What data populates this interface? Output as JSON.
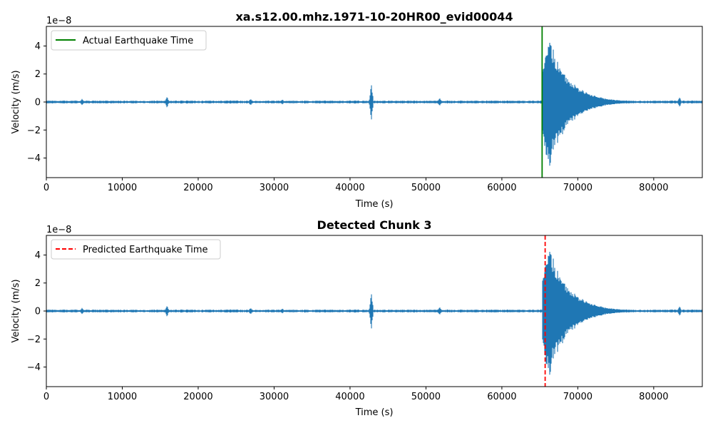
{
  "chart_data": [
    {
      "type": "line",
      "title": "xa.s12.00.mhz.1971-10-20HR00_evid00044",
      "xlabel": "Time (s)",
      "ylabel": "Velocity (m/s)",
      "y_scale_label": "1e−8",
      "xlim": [
        0,
        86400
      ],
      "ylim": [
        -5.4,
        5.4
      ],
      "y_unit_multiplier": 1e-08,
      "xticks": [
        0,
        10000,
        20000,
        30000,
        40000,
        50000,
        60000,
        70000,
        80000
      ],
      "xtick_labels": [
        "0",
        "10000",
        "20000",
        "30000",
        "40000",
        "50000",
        "60000",
        "70000",
        "80000"
      ],
      "yticks": [
        -4,
        -2,
        0,
        2,
        4
      ],
      "ytick_labels": [
        "−4",
        "−2",
        "0",
        "2",
        "4"
      ],
      "grid": false,
      "legend_position": "top-left",
      "series": [
        {
          "color": "#1f77b4",
          "noise_amplitude": 0.08,
          "spikes": [
            [
              4700,
              0.25
            ],
            [
              15900,
              0.45
            ],
            [
              26900,
              0.3
            ],
            [
              31100,
              0.2
            ],
            [
              42800,
              1.55
            ],
            [
              51800,
              0.35
            ],
            [
              83400,
              0.4
            ]
          ],
          "event": {
            "onset": 65300,
            "peak": 5.0,
            "rise": 800,
            "decay": 2600,
            "extent": 15000
          }
        }
      ],
      "vline": {
        "x": 65300,
        "label": "Actual Earthquake Time",
        "color": "#008000",
        "style": "solid"
      }
    },
    {
      "type": "line",
      "title": "Detected Chunk 3",
      "xlabel": "Time (s)",
      "ylabel": "Velocity (m/s)",
      "y_scale_label": "1e−8",
      "xlim": [
        0,
        86400
      ],
      "ylim": [
        -5.4,
        5.4
      ],
      "y_unit_multiplier": 1e-08,
      "xticks": [
        0,
        10000,
        20000,
        30000,
        40000,
        50000,
        60000,
        70000,
        80000
      ],
      "xtick_labels": [
        "0",
        "10000",
        "20000",
        "30000",
        "40000",
        "50000",
        "60000",
        "70000",
        "80000"
      ],
      "yticks": [
        -4,
        -2,
        0,
        2,
        4
      ],
      "ytick_labels": [
        "−4",
        "−2",
        "0",
        "2",
        "4"
      ],
      "grid": false,
      "legend_position": "top-left",
      "series": [
        {
          "color": "#1f77b4",
          "noise_amplitude": 0.08,
          "spikes": [
            [
              4700,
              0.25
            ],
            [
              15900,
              0.45
            ],
            [
              26900,
              0.3
            ],
            [
              31100,
              0.2
            ],
            [
              42800,
              1.55
            ],
            [
              51800,
              0.35
            ],
            [
              83400,
              0.4
            ]
          ],
          "event": {
            "onset": 65300,
            "peak": 5.0,
            "rise": 800,
            "decay": 2600,
            "extent": 15000
          }
        }
      ],
      "vline": {
        "x": 65700,
        "label": "Predicted Earthquake Time",
        "color": "#ff0000",
        "style": "dashed"
      }
    }
  ]
}
